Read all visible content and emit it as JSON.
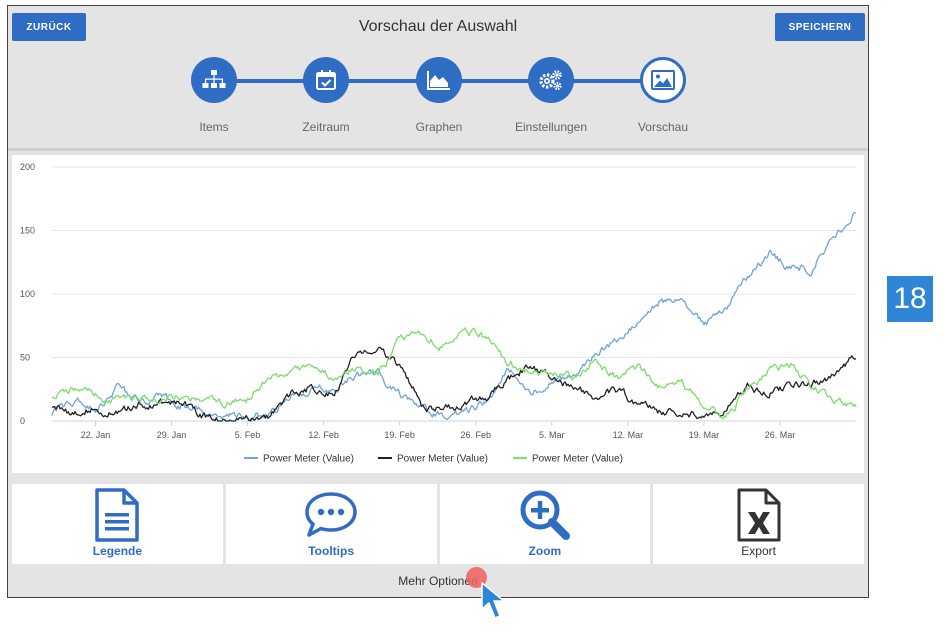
{
  "header": {
    "back_label": "ZURÜCK",
    "title": "Vorschau der Auswahl",
    "save_label": "SPEICHERN"
  },
  "stepper": {
    "color": "#2f6dc4",
    "steps": [
      {
        "label": "Items",
        "icon": "sitemap-icon",
        "active": false
      },
      {
        "label": "Zeitraum",
        "icon": "calendar-check-icon",
        "active": false
      },
      {
        "label": "Graphen",
        "icon": "area-chart-icon",
        "active": false
      },
      {
        "label": "Einstellungen",
        "icon": "gears-icon",
        "active": false
      },
      {
        "label": "Vorschau",
        "icon": "image-icon",
        "active": true
      }
    ]
  },
  "chart_data": {
    "type": "line",
    "x_type": "date",
    "x_range": [
      "2018-01-18",
      "2018-04-02"
    ],
    "x_ticks": [
      {
        "date": "2018-01-22",
        "label": "22. Jan"
      },
      {
        "date": "2018-01-29",
        "label": "29. Jan"
      },
      {
        "date": "2018-02-05",
        "label": "5. Feb"
      },
      {
        "date": "2018-02-12",
        "label": "12. Feb"
      },
      {
        "date": "2018-02-19",
        "label": "19. Feb"
      },
      {
        "date": "2018-02-26",
        "label": "26. Feb"
      },
      {
        "date": "2018-03-05",
        "label": "5. Mar"
      },
      {
        "date": "2018-03-12",
        "label": "12. Mar"
      },
      {
        "date": "2018-03-19",
        "label": "19. Mar"
      },
      {
        "date": "2018-03-26",
        "label": "26. Mar"
      }
    ],
    "ylim": [
      0,
      200
    ],
    "y_ticks": [
      0,
      50,
      100,
      150,
      200
    ],
    "grid": true,
    "legend_position": "bottom",
    "series": [
      {
        "name": "Power Meter (Value)",
        "color": "#6fa3e0",
        "points": [
          [
            "2018-01-18",
            6
          ],
          [
            "2018-01-20",
            16
          ],
          [
            "2018-01-22",
            9
          ],
          [
            "2018-01-24",
            26
          ],
          [
            "2018-01-26",
            15
          ],
          [
            "2018-01-28",
            20
          ],
          [
            "2018-01-30",
            11
          ],
          [
            "2018-02-01",
            7
          ],
          [
            "2018-02-03",
            4
          ],
          [
            "2018-02-05",
            3
          ],
          [
            "2018-02-07",
            4
          ],
          [
            "2018-02-09",
            19
          ],
          [
            "2018-02-11",
            24
          ],
          [
            "2018-02-13",
            26
          ],
          [
            "2018-02-15",
            36
          ],
          [
            "2018-02-17",
            38
          ],
          [
            "2018-02-19",
            22
          ],
          [
            "2018-02-21",
            10
          ],
          [
            "2018-02-23",
            4
          ],
          [
            "2018-02-25",
            7
          ],
          [
            "2018-02-27",
            14
          ],
          [
            "2018-03-01",
            41
          ],
          [
            "2018-03-03",
            21
          ],
          [
            "2018-03-05",
            30
          ],
          [
            "2018-03-07",
            36
          ],
          [
            "2018-03-09",
            52
          ],
          [
            "2018-03-11",
            64
          ],
          [
            "2018-03-13",
            78
          ],
          [
            "2018-03-15",
            96
          ],
          [
            "2018-03-17",
            92
          ],
          [
            "2018-03-19",
            76
          ],
          [
            "2018-03-21",
            86
          ],
          [
            "2018-03-23",
            113
          ],
          [
            "2018-03-25",
            132
          ],
          [
            "2018-03-27",
            120
          ],
          [
            "2018-03-29",
            120
          ],
          [
            "2018-03-31",
            145
          ],
          [
            "2018-04-02",
            166
          ]
        ]
      },
      {
        "name": "Power Meter (Value)",
        "color": "#222222",
        "points": [
          [
            "2018-01-18",
            12
          ],
          [
            "2018-01-20",
            6
          ],
          [
            "2018-01-22",
            10
          ],
          [
            "2018-01-24",
            5
          ],
          [
            "2018-01-26",
            14
          ],
          [
            "2018-01-28",
            13
          ],
          [
            "2018-01-30",
            16
          ],
          [
            "2018-02-01",
            4
          ],
          [
            "2018-02-03",
            2
          ],
          [
            "2018-02-05",
            3
          ],
          [
            "2018-02-07",
            3
          ],
          [
            "2018-02-09",
            22
          ],
          [
            "2018-02-11",
            27
          ],
          [
            "2018-02-13",
            22
          ],
          [
            "2018-02-15",
            54
          ],
          [
            "2018-02-17",
            60
          ],
          [
            "2018-02-19",
            43
          ],
          [
            "2018-02-21",
            14
          ],
          [
            "2018-02-23",
            8
          ],
          [
            "2018-02-25",
            14
          ],
          [
            "2018-02-27",
            19
          ],
          [
            "2018-03-01",
            32
          ],
          [
            "2018-03-03",
            45
          ],
          [
            "2018-03-05",
            32
          ],
          [
            "2018-03-07",
            26
          ],
          [
            "2018-03-09",
            18
          ],
          [
            "2018-03-11",
            24
          ],
          [
            "2018-03-13",
            14
          ],
          [
            "2018-03-15",
            8
          ],
          [
            "2018-03-17",
            6
          ],
          [
            "2018-03-19",
            4
          ],
          [
            "2018-03-21",
            6
          ],
          [
            "2018-03-23",
            28
          ],
          [
            "2018-03-25",
            22
          ],
          [
            "2018-03-27",
            28
          ],
          [
            "2018-03-29",
            30
          ],
          [
            "2018-03-31",
            36
          ],
          [
            "2018-04-02",
            52
          ]
        ]
      },
      {
        "name": "Power Meter (Value)",
        "color": "#7ddc6c",
        "points": [
          [
            "2018-01-18",
            20
          ],
          [
            "2018-01-20",
            25
          ],
          [
            "2018-01-22",
            21
          ],
          [
            "2018-01-24",
            15
          ],
          [
            "2018-01-26",
            20
          ],
          [
            "2018-01-28",
            18
          ],
          [
            "2018-01-30",
            20
          ],
          [
            "2018-02-01",
            15
          ],
          [
            "2018-02-03",
            13
          ],
          [
            "2018-02-05",
            17
          ],
          [
            "2018-02-07",
            34
          ],
          [
            "2018-02-09",
            38
          ],
          [
            "2018-02-11",
            42
          ],
          [
            "2018-02-13",
            36
          ],
          [
            "2018-02-15",
            40
          ],
          [
            "2018-02-17",
            36
          ],
          [
            "2018-02-19",
            64
          ],
          [
            "2018-02-21",
            70
          ],
          [
            "2018-02-23",
            58
          ],
          [
            "2018-02-25",
            70
          ],
          [
            "2018-02-27",
            66
          ],
          [
            "2018-03-01",
            45
          ],
          [
            "2018-03-03",
            38
          ],
          [
            "2018-03-05",
            38
          ],
          [
            "2018-03-07",
            33
          ],
          [
            "2018-03-09",
            48
          ],
          [
            "2018-03-11",
            34
          ],
          [
            "2018-03-13",
            42
          ],
          [
            "2018-03-15",
            28
          ],
          [
            "2018-03-17",
            30
          ],
          [
            "2018-03-19",
            10
          ],
          [
            "2018-03-21",
            2
          ],
          [
            "2018-03-23",
            26
          ],
          [
            "2018-03-25",
            40
          ],
          [
            "2018-03-27",
            44
          ],
          [
            "2018-03-29",
            26
          ],
          [
            "2018-03-31",
            14
          ],
          [
            "2018-04-02",
            10
          ]
        ]
      }
    ]
  },
  "tools": {
    "accent_color": "#2f6dc4",
    "items": [
      {
        "label": "Legende",
        "icon": "document-icon"
      },
      {
        "label": "Tooltips",
        "icon": "speech-bubble-icon"
      },
      {
        "label": "Zoom",
        "icon": "zoom-in-icon"
      },
      {
        "label": "Export",
        "icon": "excel-file-icon"
      }
    ]
  },
  "more_options_label": "Mehr Optionen",
  "step_badge": "18"
}
